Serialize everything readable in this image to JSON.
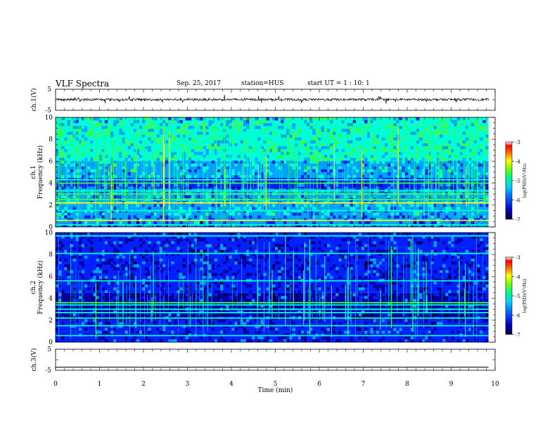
{
  "header": {
    "title": "VLF Spectra",
    "date": "Sep. 25, 2017",
    "station": "station=HUS",
    "start": "start  UT  =   1 : 10: 1"
  },
  "chart_data": [
    {
      "type": "line",
      "panel": "ch1-waveform",
      "ylabel": "ch.1(V)",
      "yticks": [
        "5",
        "-5"
      ],
      "ylim": [
        -5,
        5
      ],
      "x_domain": [
        0,
        9.85
      ],
      "description_value": 0.1,
      "color": "#000000"
    },
    {
      "type": "heatmap",
      "panel": "ch1-spectrogram",
      "ylabel": "ch.1\nFrequency (kHz)",
      "ylim": [
        0,
        10
      ],
      "yticks": [
        "0",
        "2",
        "4",
        "6",
        "8",
        "10"
      ],
      "x_domain": [
        0,
        9.85
      ],
      "emission_bands_khz": [
        {
          "f": 0.2,
          "level": 0.55
        },
        {
          "f": 0.6,
          "level": 0.7
        },
        {
          "f": 1.5,
          "level": 0.55
        },
        {
          "f": 2.2,
          "level": 0.7
        },
        {
          "f": 2.5,
          "level": 0.65
        },
        {
          "f": 3.0,
          "level": 0.6
        },
        {
          "f": 3.3,
          "level": 0.55
        },
        {
          "f": 4.0,
          "level": 0.6
        },
        {
          "f": 4.3,
          "level": 0.55
        }
      ],
      "band_levels": [
        {
          "f_min": 0,
          "f_max": 1,
          "level": 0.35
        },
        {
          "f_min": 1,
          "f_max": 2,
          "level": 0.42
        },
        {
          "f_min": 2,
          "f_max": 3.5,
          "level": 0.4
        },
        {
          "f_min": 3.5,
          "f_max": 4.5,
          "level": 0.3
        },
        {
          "f_min": 4.5,
          "f_max": 6,
          "level": 0.42
        },
        {
          "f_min": 6,
          "f_max": 9.5,
          "level": 0.5
        },
        {
          "f_min": 9.5,
          "f_max": 10,
          "level": 0.45
        }
      ],
      "colorbar": {
        "label": "log(PSD)(V²/Hz)",
        "ticks": [
          "-3",
          "-4",
          "-5",
          "-6",
          "-7"
        ],
        "range": [
          -7,
          -3
        ]
      }
    },
    {
      "type": "heatmap",
      "panel": "ch2-spectrogram",
      "ylabel": "ch.2\nFrequency (kHz)",
      "ylim": [
        0,
        10
      ],
      "yticks": [
        "0",
        "2",
        "4",
        "6",
        "8",
        "10"
      ],
      "x_domain": [
        0,
        9.85
      ],
      "emission_bands_khz": [
        {
          "f": 0.6,
          "level": 0.45
        },
        {
          "f": 1.5,
          "level": 0.45
        },
        {
          "f": 2.2,
          "level": 0.5
        },
        {
          "f": 2.7,
          "level": 0.45
        },
        {
          "f": 3.0,
          "level": 0.5
        },
        {
          "f": 3.4,
          "level": 0.5
        },
        {
          "f": 3.6,
          "level": 0.65
        },
        {
          "f": 5.6,
          "level": 0.55
        },
        {
          "f": 8.1,
          "level": 0.5
        },
        {
          "f": 9.7,
          "level": 0.5
        }
      ],
      "band_levels": [
        {
          "f_min": 0,
          "f_max": 1,
          "level": 0.25
        },
        {
          "f_min": 1,
          "f_max": 2,
          "level": 0.24
        },
        {
          "f_min": 2,
          "f_max": 4.5,
          "level": 0.22
        },
        {
          "f_min": 4.5,
          "f_max": 8,
          "level": 0.24
        },
        {
          "f_min": 8,
          "f_max": 10,
          "level": 0.24
        }
      ],
      "colorbar": {
        "label": "log(PSD)(V²/Hz)",
        "ticks": [
          "-3",
          "-4",
          "-5",
          "-6",
          "-7"
        ],
        "range": [
          -7,
          -3
        ]
      }
    },
    {
      "type": "line",
      "panel": "ch3-waveform",
      "ylabel": "ch.3(V)",
      "yticks": [
        "5",
        "-5"
      ],
      "ylim": [
        -5,
        5
      ],
      "x_domain": [
        0,
        9.85
      ],
      "description_value": -3.5,
      "color": "#000000"
    }
  ],
  "x_axis": {
    "xlabel": "Time (min)",
    "xlim": [
      0,
      10
    ],
    "ticks": [
      "0",
      "1",
      "2",
      "3",
      "4",
      "5",
      "6",
      "7",
      "8",
      "9",
      "10"
    ]
  },
  "colormap": [
    "#00003c",
    "#0000a0",
    "#0020ff",
    "#00a0ff",
    "#00ffd0",
    "#40ff40",
    "#ffff00",
    "#ff8000",
    "#ff0000",
    "#ffffff"
  ]
}
